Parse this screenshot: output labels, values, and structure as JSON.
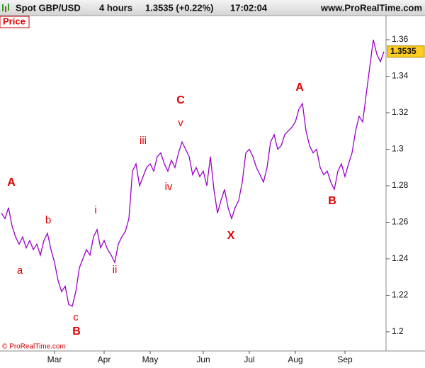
{
  "header": {
    "symbol": "Spot GBP/USD",
    "period": "4 hours",
    "quote": "1.3535 (+0.22%)",
    "time": "17:02:04",
    "site": "www.ProRealTime.com",
    "panel": "Price",
    "copyright": "© ProRealTime.com"
  },
  "chart_data": {
    "type": "line",
    "color": "#9b00cc",
    "grid": false,
    "categories": [
      null,
      null,
      null,
      null,
      null,
      null,
      null,
      null,
      null,
      null,
      null,
      null,
      null,
      null,
      null,
      "Mar",
      null,
      null,
      null,
      null,
      null,
      null,
      null,
      null,
      null,
      null,
      null,
      null,
      null,
      "Apr",
      null,
      null,
      null,
      null,
      null,
      null,
      null,
      null,
      null,
      null,
      null,
      null,
      "May",
      null,
      null,
      null,
      null,
      null,
      null,
      null,
      null,
      null,
      null,
      null,
      null,
      null,
      null,
      "Jun",
      null,
      null,
      null,
      null,
      null,
      null,
      null,
      null,
      null,
      null,
      null,
      null,
      "Jul",
      null,
      null,
      null,
      null,
      null,
      null,
      null,
      null,
      null,
      null,
      null,
      null,
      "Aug",
      null,
      null,
      null,
      null,
      null,
      null,
      null,
      null,
      null,
      null,
      null,
      null,
      null,
      "Sep",
      null,
      null,
      null,
      null,
      null,
      null,
      null,
      null,
      null,
      null,
      null
    ],
    "values": [
      1.265,
      1.262,
      1.268,
      1.258,
      1.252,
      1.248,
      1.252,
      1.246,
      1.25,
      1.245,
      1.248,
      1.242,
      1.25,
      1.254,
      1.245,
      1.238,
      1.228,
      1.222,
      1.225,
      1.215,
      1.214,
      1.222,
      1.235,
      1.24,
      1.245,
      1.242,
      1.252,
      1.256,
      1.246,
      1.25,
      1.245,
      1.242,
      1.238,
      1.248,
      1.252,
      1.255,
      1.262,
      1.288,
      1.292,
      1.28,
      1.285,
      1.29,
      1.292,
      1.288,
      1.296,
      1.298,
      1.292,
      1.288,
      1.294,
      1.29,
      1.298,
      1.304,
      1.3,
      1.296,
      1.286,
      1.29,
      1.285,
      1.288,
      1.28,
      1.296,
      1.278,
      1.265,
      1.272,
      1.278,
      1.268,
      1.262,
      1.268,
      1.272,
      1.282,
      1.298,
      1.3,
      1.296,
      1.29,
      1.286,
      1.282,
      1.29,
      1.304,
      1.308,
      1.3,
      1.302,
      1.308,
      1.31,
      1.312,
      1.315,
      1.322,
      1.325,
      1.31,
      1.302,
      1.298,
      1.3,
      1.29,
      1.286,
      1.288,
      1.282,
      1.278,
      1.288,
      1.292,
      1.285,
      1.292,
      1.298,
      1.31,
      1.318,
      1.315,
      1.33,
      1.345,
      1.36,
      1.352,
      1.348,
      1.3535
    ],
    "ylim": [
      1.1895,
      1.3732
    ],
    "yticks": [
      1.2,
      1.22,
      1.24,
      1.26,
      1.28,
      1.3,
      1.32,
      1.34,
      1.36
    ],
    "annotations": [
      "A",
      "a",
      "b",
      "c",
      "B",
      "i",
      "ii",
      "iii",
      "iv",
      "v",
      "C",
      "X",
      "A",
      "B"
    ]
  }
}
